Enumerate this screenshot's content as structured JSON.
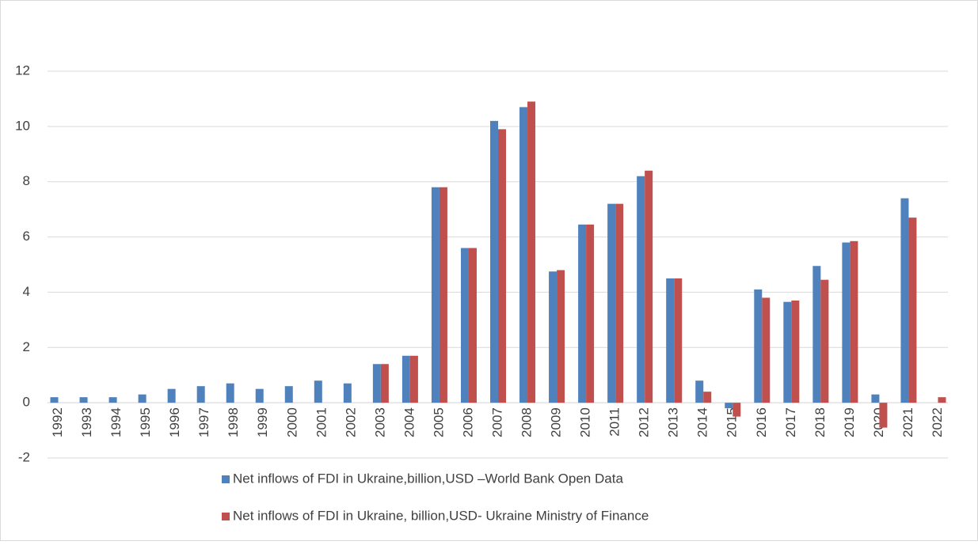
{
  "chart_data": {
    "type": "bar",
    "categories": [
      "1992",
      "1993",
      "1994",
      "1995",
      "1996",
      "1997",
      "1998",
      "1999",
      "2000",
      "2001",
      "2002",
      "2003",
      "2004",
      "2005",
      "2006",
      "2007",
      "2008",
      "2009",
      "2010",
      "2011",
      "2012",
      "2013",
      "2014",
      "2015",
      "2016",
      "2017",
      "2018",
      "2019",
      "2020",
      "2021",
      "2022"
    ],
    "series": [
      {
        "name": "Net inflows of FDI in Ukraine,billion,USD –World Bank Open Data",
        "color": "#4f81bd",
        "values": [
          0.2,
          0.2,
          0.2,
          0.3,
          0.5,
          0.6,
          0.7,
          0.5,
          0.6,
          0.8,
          0.7,
          1.4,
          1.7,
          7.8,
          5.6,
          10.2,
          10.7,
          4.75,
          6.45,
          7.2,
          8.2,
          4.5,
          0.8,
          -0.2,
          4.1,
          3.65,
          4.95,
          5.8,
          0.3,
          7.4,
          null
        ]
      },
      {
        "name": "Net inflows of FDI in Ukraine, billion,USD- Ukraine Ministry of Finance",
        "color": "#c0504d",
        "values": [
          null,
          null,
          null,
          null,
          null,
          null,
          null,
          null,
          null,
          null,
          null,
          1.4,
          1.7,
          7.8,
          5.6,
          9.9,
          10.9,
          4.8,
          6.45,
          7.2,
          8.4,
          4.5,
          0.4,
          -0.5,
          3.8,
          3.7,
          4.45,
          5.85,
          -0.9,
          6.7,
          0.2
        ]
      }
    ],
    "ylim": [
      -2,
      12
    ],
    "yticks": [
      -2,
      0,
      2,
      4,
      6,
      8,
      10,
      12
    ],
    "grid": true,
    "legend": "bottom"
  }
}
